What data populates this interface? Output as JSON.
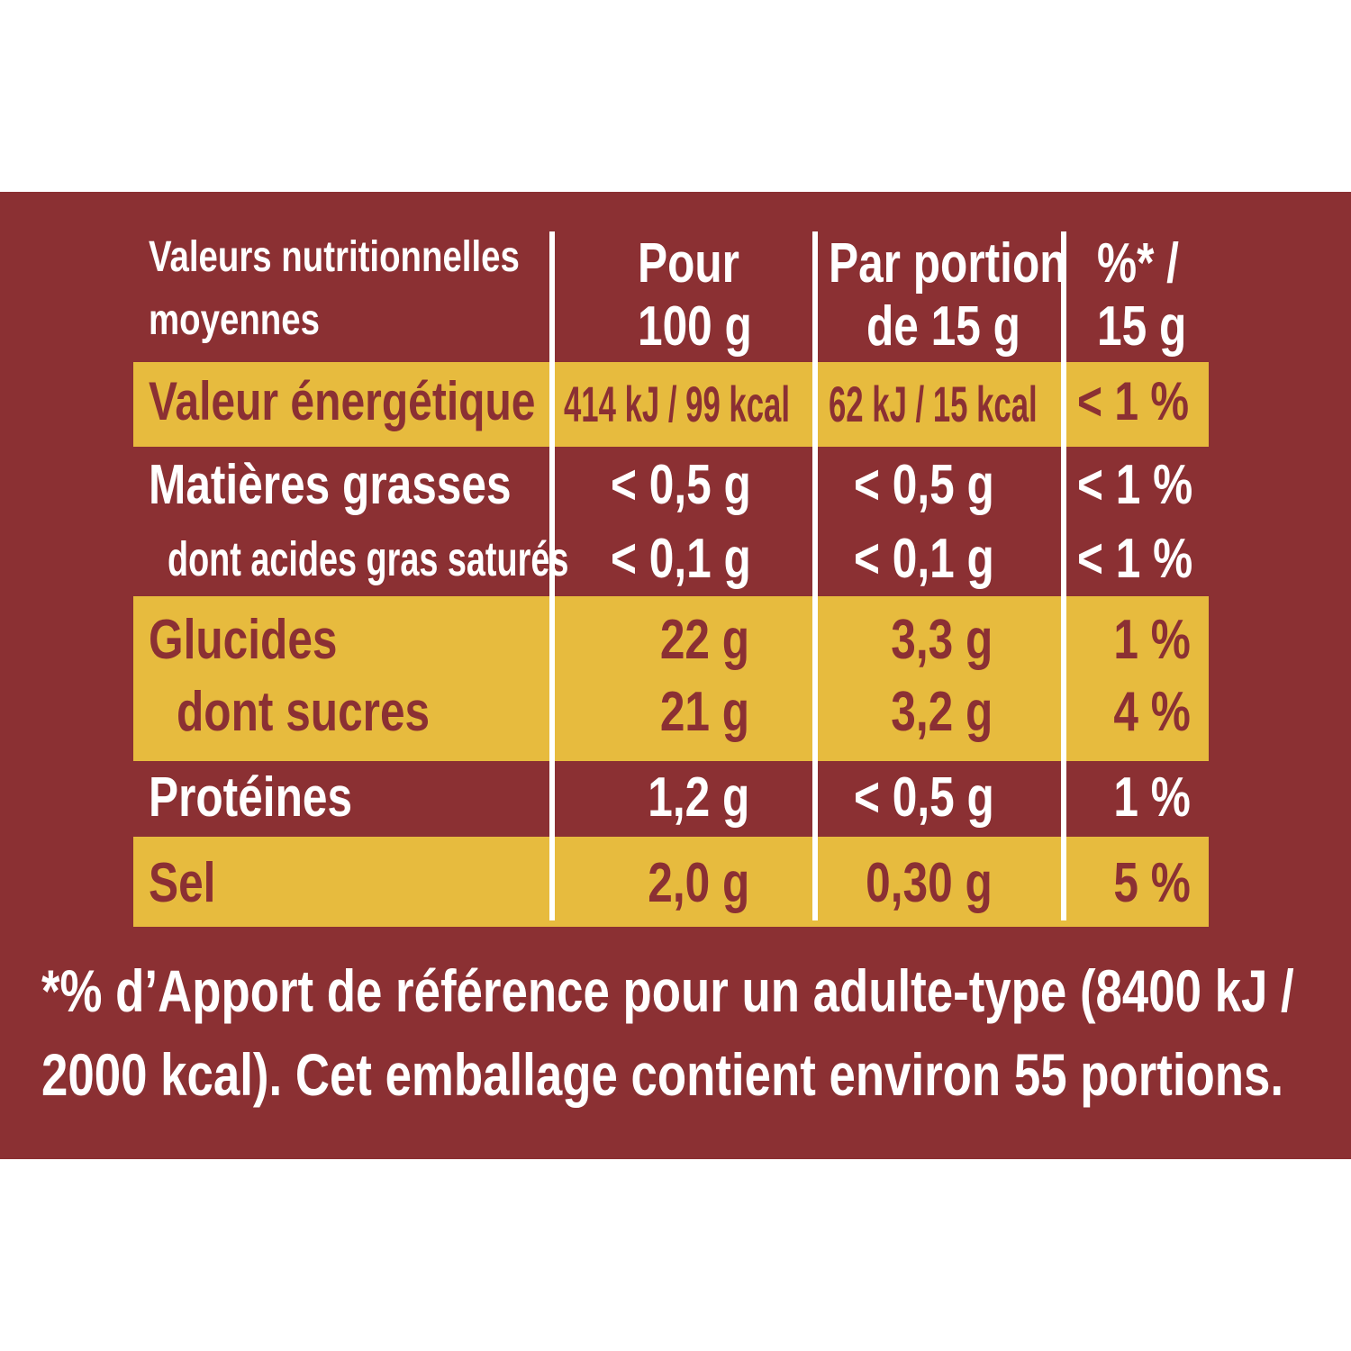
{
  "header": {
    "label_line1": "Valeurs nutritionnelles",
    "label_line2": "moyennes",
    "col100_line1": "Pour",
    "col100_line2": "100 g",
    "portion_line1": "Par portion",
    "portion_line2": "de 15 g",
    "pct_line1": "%* /",
    "pct_line2": "15 g"
  },
  "rows": [
    {
      "label": "Valeur énergétique",
      "per100": "414 kJ / 99 kcal",
      "portion": "62 kJ / 15 kcal",
      "pct": "< 1 %"
    },
    {
      "label": "Matières grasses",
      "per100": "< 0,5 g",
      "portion": "< 0,5 g",
      "pct": "< 1 %"
    },
    {
      "label": "dont acides gras saturés",
      "per100": "< 0,1 g",
      "portion": "< 0,1 g",
      "pct": "< 1 %"
    },
    {
      "label": "Glucides",
      "per100": "22 g",
      "portion": "3,3 g",
      "pct": "1 %"
    },
    {
      "label": "dont sucres",
      "per100": "21 g",
      "portion": "3,2 g",
      "pct": "4 %"
    },
    {
      "label": "Protéines",
      "per100": "1,2 g",
      "portion": "< 0,5 g",
      "pct": "1 %"
    },
    {
      "label": "Sel",
      "per100": "2,0 g",
      "portion": "0,30 g",
      "pct": "5 %"
    }
  ],
  "footnote": {
    "line1": "*% d’Apport de référence pour un adulte-type (8400 kJ /",
    "line2": "2000 kcal). Cet emballage contient environ 55 portions."
  },
  "colors": {
    "panel": "#8b3033",
    "highlight": "#e7bb3e",
    "text_light": "#ffffff",
    "text_dark": "#8b3033"
  }
}
